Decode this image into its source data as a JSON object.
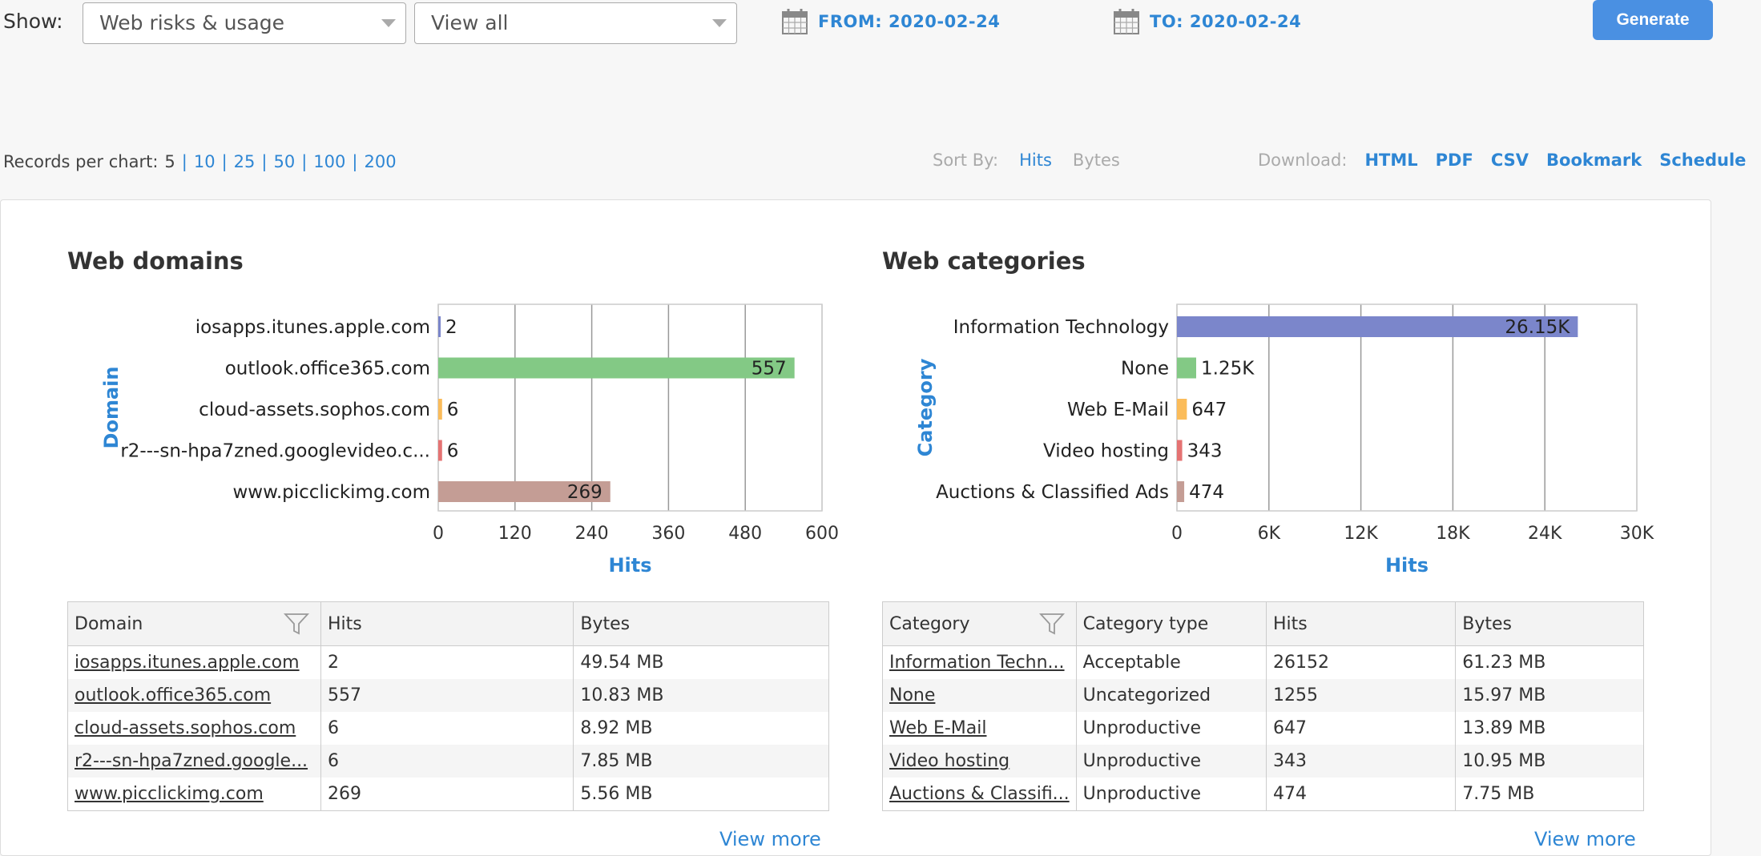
{
  "filters": {
    "show_label": "Show:",
    "report_select": "Web risks & usage",
    "view_select": "View all",
    "from": "FROM: 2020-02-24",
    "to": "TO: 2020-02-24",
    "generate_label": "Generate"
  },
  "records": {
    "label": "Records per chart:",
    "options": [
      "5",
      "10",
      "25",
      "50",
      "100",
      "200"
    ],
    "current": "5"
  },
  "sort": {
    "label": "Sort By:",
    "hits": "Hits",
    "bytes": "Bytes",
    "active": "Hits"
  },
  "download": {
    "label": "Download:",
    "links": [
      "HTML",
      "PDF",
      "CSV",
      "Bookmark",
      "Schedule"
    ]
  },
  "colors": {
    "accent": "#2e86d4",
    "button": "#4a90e2",
    "bar1": "#7b86cb",
    "bar2": "#83c985",
    "bar3": "#fbbc5a",
    "bar4": "#e57373",
    "bar5": "#c49d95"
  },
  "chart_data": [
    {
      "type": "bar",
      "orientation": "horizontal",
      "title": "Web domains",
      "xlabel": "Hits",
      "ylabel": "Domain",
      "categories": [
        "iosapps.itunes.apple.com",
        "outlook.office365.com",
        "cloud-assets.sophos.com",
        "r2---sn-hpa7zned.googlevideo.c...",
        "www.picclickimg.com"
      ],
      "values": [
        2,
        557,
        6,
        6,
        269
      ],
      "data_labels": [
        "2",
        "557",
        "6",
        "6",
        "269"
      ],
      "xlim": [
        0,
        600
      ],
      "ticks": [
        "0",
        "120",
        "240",
        "360",
        "480",
        "600"
      ],
      "grid": true
    },
    {
      "type": "bar",
      "orientation": "horizontal",
      "title": "Web categories",
      "xlabel": "Hits",
      "ylabel": "Category",
      "categories": [
        "Information Technology",
        "None",
        "Web E-Mail",
        "Video hosting",
        "Auctions & Classified Ads"
      ],
      "values": [
        26152,
        1255,
        647,
        343,
        474
      ],
      "data_labels": [
        "26.15K",
        "1.25K",
        "647",
        "343",
        "474"
      ],
      "xlim": [
        0,
        30000
      ],
      "ticks": [
        "0",
        "6K",
        "12K",
        "18K",
        "24K",
        "30K"
      ],
      "grid": true
    }
  ],
  "domains_table": {
    "headers": [
      "Domain",
      "Hits",
      "Bytes"
    ],
    "rows": [
      [
        "iosapps.itunes.apple.com",
        "2",
        "49.54 MB"
      ],
      [
        "outlook.office365.com",
        "557",
        "10.83 MB"
      ],
      [
        "cloud-assets.sophos.com",
        "6",
        "8.92 MB"
      ],
      [
        "r2---sn-hpa7zned.google...",
        "6",
        "7.85 MB"
      ],
      [
        "www.picclickimg.com",
        "269",
        "5.56 MB"
      ]
    ],
    "view_more": "View more"
  },
  "categories_table": {
    "headers": [
      "Category",
      "Category type",
      "Hits",
      "Bytes"
    ],
    "rows": [
      [
        "Information Techn...",
        "Acceptable",
        "26152",
        "61.23 MB"
      ],
      [
        "None",
        "Uncategorized",
        "1255",
        "15.97 MB"
      ],
      [
        "Web E-Mail",
        "Unproductive",
        "647",
        "13.89 MB"
      ],
      [
        "Video hosting",
        "Unproductive",
        "343",
        "10.95 MB"
      ],
      [
        "Auctions & Classifi...",
        "Unproductive",
        "474",
        "7.75 MB"
      ]
    ],
    "view_more": "View more"
  }
}
